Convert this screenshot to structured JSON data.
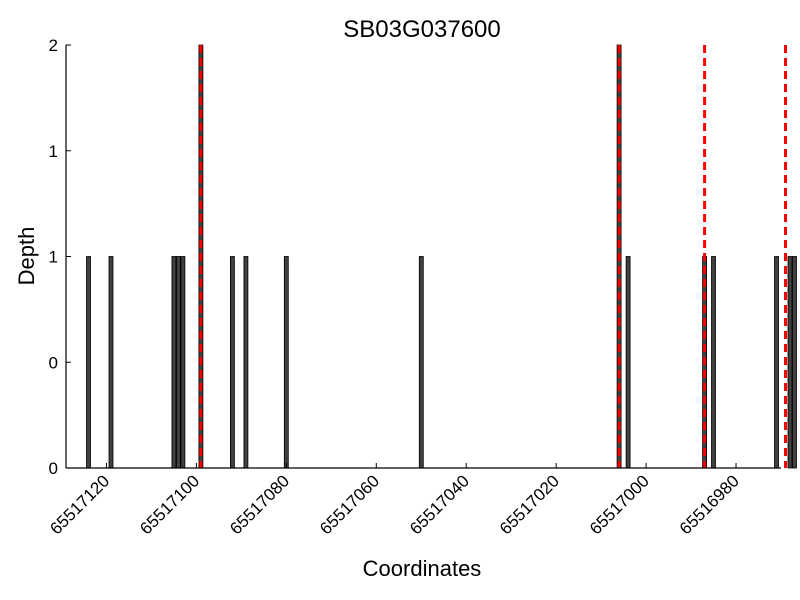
{
  "chart_data": {
    "type": "bar",
    "title": "SB03G037600",
    "xlabel": "Coordinates",
    "ylabel": "Depth",
    "x_reversed": true,
    "xlim": [
      65517129,
      65516970
    ],
    "ylim": [
      0,
      2
    ],
    "x_ticks": [
      65517120,
      65517100,
      65517080,
      65517060,
      65517040,
      65517020,
      65517000,
      65516980
    ],
    "y_ticks": [
      {
        "value": 0,
        "label": "0"
      },
      {
        "value": 0.5,
        "label": "0"
      },
      {
        "value": 1,
        "label": "1"
      },
      {
        "value": 1.5,
        "label": "1"
      },
      {
        "value": 2,
        "label": "2"
      }
    ],
    "grid": false,
    "bar_color": "#404040",
    "marker_color": "#ff0000",
    "bars": [
      {
        "x": 65517124,
        "depth": 1
      },
      {
        "x": 65517119,
        "depth": 1
      },
      {
        "x": 65517105,
        "depth": 1
      },
      {
        "x": 65517104,
        "depth": 1
      },
      {
        "x": 65517103,
        "depth": 1
      },
      {
        "x": 65517099,
        "depth": 2
      },
      {
        "x": 65517092,
        "depth": 1
      },
      {
        "x": 65517089,
        "depth": 1
      },
      {
        "x": 65517080,
        "depth": 1
      },
      {
        "x": 65517050,
        "depth": 1
      },
      {
        "x": 65517006,
        "depth": 2
      },
      {
        "x": 65517004,
        "depth": 1
      },
      {
        "x": 65516987,
        "depth": 1
      },
      {
        "x": 65516985,
        "depth": 1
      },
      {
        "x": 65516971,
        "depth": 1
      },
      {
        "x": 65516968,
        "depth": 1
      },
      {
        "x": 65516967,
        "depth": 1
      }
    ],
    "markers": [
      65517099,
      65517006,
      65516987,
      65516969
    ]
  }
}
